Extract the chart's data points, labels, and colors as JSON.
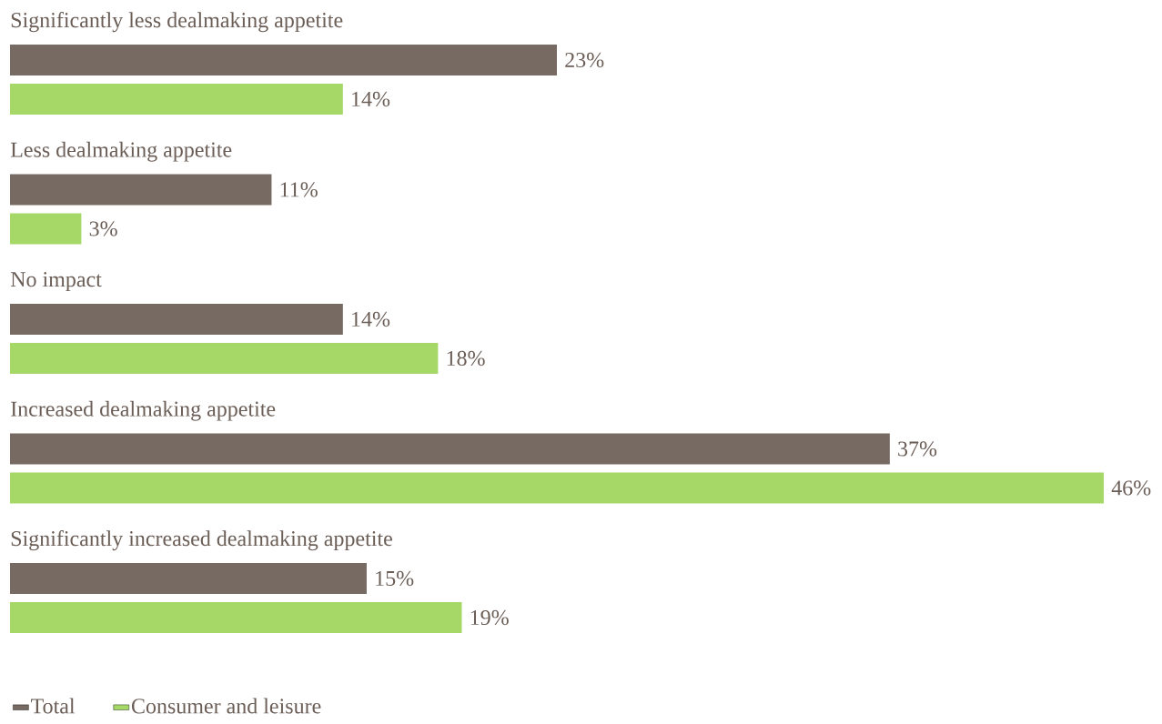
{
  "chart_data": {
    "type": "bar",
    "orientation": "horizontal",
    "categories": [
      "Significantly less dealmaking appetite",
      "Less dealmaking appetite",
      "No impact",
      "Increased dealmaking appetite",
      "Significantly increased dealmaking appetite"
    ],
    "series": [
      {
        "name": "Total",
        "color": "#766a62",
        "values": [
          23,
          11,
          14,
          37,
          15
        ],
        "value_labels": [
          "23%",
          "11%",
          "14%",
          "37%",
          "15%"
        ]
      },
      {
        "name": "Consumer and leisure",
        "color": "#a5d867",
        "values": [
          14,
          3,
          18,
          46,
          19
        ],
        "value_labels": [
          "14%",
          "3%",
          "18%",
          "46%",
          "19%"
        ]
      }
    ],
    "legend": "bottom left"
  }
}
